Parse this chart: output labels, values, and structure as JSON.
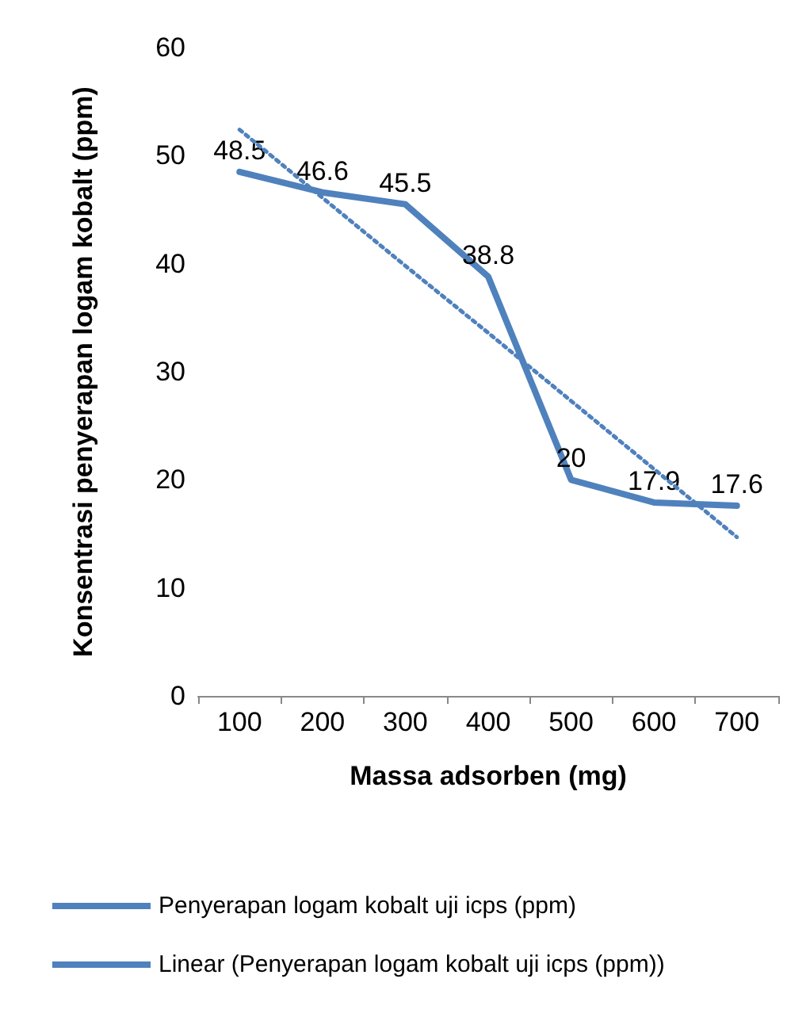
{
  "chart_data": {
    "type": "line",
    "xlabel": "Massa adsorben (mg)",
    "ylabel": "Konsentrasi penyerapan logam kobalt (ppm)",
    "categories": [
      "100",
      "200",
      "300",
      "400",
      "500",
      "600",
      "700"
    ],
    "ylim": [
      0,
      60
    ],
    "yticks": [
      0,
      10,
      20,
      30,
      40,
      50,
      60
    ],
    "grid": false,
    "legend": "bottom",
    "marker": "none",
    "series": [
      {
        "name": "Penyerapan logam kobalt uji icps (ppm)",
        "color": "#4f81bd",
        "line_style": "solid",
        "data_labels": true,
        "values": [
          48.5,
          46.6,
          45.5,
          38.8,
          20,
          17.9,
          17.6
        ]
      },
      {
        "name": "Linear (Penyerapan logam kobalt uji icps (ppm))",
        "color": "#4f81bd",
        "line_style": "dotted",
        "values": [
          52.4,
          46.1,
          39.8,
          33.6,
          27.3,
          21.0,
          14.7
        ]
      }
    ]
  }
}
